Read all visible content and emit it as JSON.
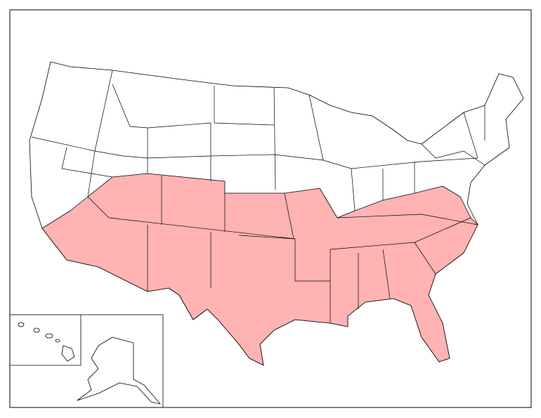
{
  "map": {
    "highlight_color": "#ffb3b3",
    "base_color": "#ffffff",
    "border_color": "#000000"
  }
}
